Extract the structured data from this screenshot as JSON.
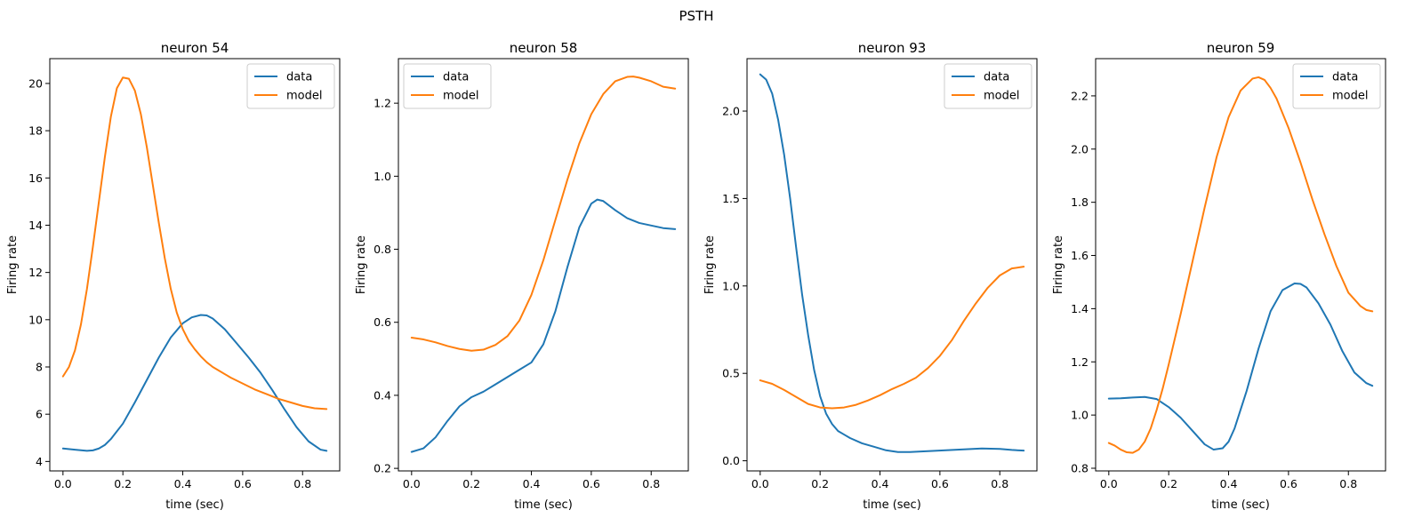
{
  "figure": {
    "suptitle": "PSTH"
  },
  "colors": {
    "data": "#1f77b4",
    "model": "#ff7f0e"
  },
  "chart_data": [
    {
      "type": "line",
      "title": "neuron 54",
      "xlabel": "time (sec)",
      "ylabel": "Firing rate",
      "xlim": [
        -0.044,
        0.924
      ],
      "ylim": [
        3.6,
        21.05
      ],
      "xticks": [
        0.0,
        0.2,
        0.4,
        0.6,
        0.8
      ],
      "xtick_labels": [
        "0.0",
        "0.2",
        "0.4",
        "0.6",
        "0.8"
      ],
      "yticks": [
        4,
        6,
        8,
        10,
        12,
        14,
        16,
        18,
        20
      ],
      "ytick_labels": [
        "4",
        "6",
        "8",
        "10",
        "12",
        "14",
        "16",
        "18",
        "20"
      ],
      "legend": {
        "position": "upper right",
        "entries": [
          "data",
          "model"
        ]
      },
      "series": [
        {
          "name": "data",
          "x": [
            0.0,
            0.04,
            0.08,
            0.1,
            0.12,
            0.14,
            0.16,
            0.2,
            0.24,
            0.28,
            0.32,
            0.36,
            0.4,
            0.43,
            0.46,
            0.48,
            0.5,
            0.54,
            0.58,
            0.62,
            0.66,
            0.7,
            0.74,
            0.78,
            0.82,
            0.86,
            0.88
          ],
          "y": [
            4.55,
            4.5,
            4.45,
            4.47,
            4.55,
            4.7,
            4.95,
            5.6,
            6.5,
            7.45,
            8.4,
            9.25,
            9.85,
            10.1,
            10.2,
            10.18,
            10.05,
            9.6,
            9.0,
            8.4,
            7.75,
            7.0,
            6.2,
            5.45,
            4.85,
            4.5,
            4.45
          ]
        },
        {
          "name": "model",
          "x": [
            0.0,
            0.02,
            0.04,
            0.06,
            0.08,
            0.1,
            0.12,
            0.14,
            0.16,
            0.18,
            0.2,
            0.22,
            0.24,
            0.26,
            0.28,
            0.3,
            0.32,
            0.34,
            0.36,
            0.38,
            0.4,
            0.42,
            0.44,
            0.46,
            0.48,
            0.5,
            0.52,
            0.56,
            0.6,
            0.64,
            0.68,
            0.72,
            0.76,
            0.8,
            0.84,
            0.88
          ],
          "y": [
            7.6,
            8.0,
            8.7,
            9.8,
            11.3,
            13.1,
            15.0,
            16.9,
            18.6,
            19.8,
            20.25,
            20.2,
            19.7,
            18.7,
            17.3,
            15.7,
            14.1,
            12.6,
            11.3,
            10.3,
            9.6,
            9.1,
            8.75,
            8.45,
            8.2,
            8.0,
            7.85,
            7.55,
            7.3,
            7.05,
            6.85,
            6.65,
            6.5,
            6.35,
            6.25,
            6.22
          ]
        }
      ]
    },
    {
      "type": "line",
      "title": "neuron 58",
      "xlabel": "time (sec)",
      "ylabel": "Firing rate",
      "xlim": [
        -0.044,
        0.924
      ],
      "ylim": [
        0.193,
        1.322
      ],
      "xticks": [
        0.0,
        0.2,
        0.4,
        0.6,
        0.8
      ],
      "xtick_labels": [
        "0.0",
        "0.2",
        "0.4",
        "0.6",
        "0.8"
      ],
      "yticks": [
        0.2,
        0.4,
        0.6,
        0.8,
        1.0,
        1.2
      ],
      "ytick_labels": [
        "0.2",
        "0.4",
        "0.6",
        "0.8",
        "1.0",
        "1.2"
      ],
      "legend": {
        "position": "upper left",
        "entries": [
          "data",
          "model"
        ]
      },
      "series": [
        {
          "name": "data",
          "x": [
            0.0,
            0.04,
            0.08,
            0.12,
            0.16,
            0.2,
            0.24,
            0.28,
            0.32,
            0.36,
            0.4,
            0.44,
            0.48,
            0.52,
            0.56,
            0.6,
            0.62,
            0.64,
            0.68,
            0.72,
            0.76,
            0.8,
            0.84,
            0.88
          ],
          "y": [
            0.245,
            0.255,
            0.285,
            0.33,
            0.37,
            0.395,
            0.41,
            0.43,
            0.45,
            0.47,
            0.49,
            0.54,
            0.63,
            0.75,
            0.86,
            0.925,
            0.936,
            0.932,
            0.907,
            0.885,
            0.872,
            0.865,
            0.858,
            0.855
          ]
        },
        {
          "name": "model",
          "x": [
            0.0,
            0.04,
            0.08,
            0.12,
            0.16,
            0.2,
            0.24,
            0.28,
            0.32,
            0.36,
            0.4,
            0.44,
            0.48,
            0.52,
            0.56,
            0.6,
            0.64,
            0.68,
            0.72,
            0.74,
            0.76,
            0.8,
            0.84,
            0.88
          ],
          "y": [
            0.558,
            0.553,
            0.545,
            0.535,
            0.527,
            0.522,
            0.525,
            0.538,
            0.562,
            0.605,
            0.675,
            0.77,
            0.88,
            0.99,
            1.09,
            1.17,
            1.225,
            1.26,
            1.272,
            1.273,
            1.27,
            1.26,
            1.245,
            1.24
          ]
        }
      ]
    },
    {
      "type": "line",
      "title": "neuron 93",
      "xlabel": "time (sec)",
      "ylabel": "Firing rate",
      "xlim": [
        -0.044,
        0.924
      ],
      "ylim": [
        -0.058,
        2.3
      ],
      "xticks": [
        0.0,
        0.2,
        0.4,
        0.6,
        0.8
      ],
      "xtick_labels": [
        "0.0",
        "0.2",
        "0.4",
        "0.6",
        "0.8"
      ],
      "yticks": [
        0.0,
        0.5,
        1.0,
        1.5,
        2.0
      ],
      "ytick_labels": [
        "0.0",
        "0.5",
        "1.0",
        "1.5",
        "2.0"
      ],
      "legend": {
        "position": "upper right",
        "entries": [
          "data",
          "model"
        ]
      },
      "series": [
        {
          "name": "data",
          "x": [
            0.0,
            0.02,
            0.04,
            0.06,
            0.08,
            0.1,
            0.12,
            0.14,
            0.16,
            0.18,
            0.2,
            0.22,
            0.24,
            0.26,
            0.28,
            0.3,
            0.34,
            0.38,
            0.42,
            0.46,
            0.5,
            0.56,
            0.62,
            0.68,
            0.74,
            0.8,
            0.84,
            0.88
          ],
          "y": [
            2.21,
            2.18,
            2.1,
            1.95,
            1.75,
            1.5,
            1.22,
            0.95,
            0.72,
            0.52,
            0.37,
            0.27,
            0.21,
            0.17,
            0.15,
            0.13,
            0.1,
            0.08,
            0.06,
            0.05,
            0.05,
            0.055,
            0.06,
            0.065,
            0.07,
            0.068,
            0.062,
            0.058
          ]
        },
        {
          "name": "model",
          "x": [
            0.0,
            0.04,
            0.08,
            0.12,
            0.16,
            0.2,
            0.24,
            0.28,
            0.32,
            0.36,
            0.4,
            0.44,
            0.48,
            0.52,
            0.56,
            0.6,
            0.64,
            0.68,
            0.72,
            0.76,
            0.8,
            0.84,
            0.88
          ],
          "y": [
            0.46,
            0.44,
            0.405,
            0.365,
            0.325,
            0.305,
            0.3,
            0.305,
            0.32,
            0.345,
            0.375,
            0.41,
            0.44,
            0.475,
            0.53,
            0.6,
            0.69,
            0.8,
            0.9,
            0.99,
            1.06,
            1.1,
            1.11
          ]
        }
      ]
    },
    {
      "type": "line",
      "title": "neuron 59",
      "xlabel": "time (sec)",
      "ylabel": "Firing rate",
      "xlim": [
        -0.044,
        0.924
      ],
      "ylim": [
        0.79,
        2.34
      ],
      "xticks": [
        0.0,
        0.2,
        0.4,
        0.6,
        0.8
      ],
      "xtick_labels": [
        "0.0",
        "0.2",
        "0.4",
        "0.6",
        "0.8"
      ],
      "yticks": [
        0.8,
        1.0,
        1.2,
        1.4,
        1.6,
        1.8,
        2.0,
        2.2
      ],
      "ytick_labels": [
        "0.8",
        "1.0",
        "1.2",
        "1.4",
        "1.6",
        "1.8",
        "2.0",
        "2.2"
      ],
      "legend": {
        "position": "upper right",
        "entries": [
          "data",
          "model"
        ]
      },
      "series": [
        {
          "name": "data",
          "x": [
            0.0,
            0.04,
            0.08,
            0.12,
            0.16,
            0.2,
            0.24,
            0.28,
            0.32,
            0.35,
            0.38,
            0.4,
            0.42,
            0.46,
            0.5,
            0.54,
            0.58,
            0.62,
            0.64,
            0.66,
            0.7,
            0.74,
            0.78,
            0.82,
            0.86,
            0.88
          ],
          "y": [
            1.062,
            1.063,
            1.066,
            1.068,
            1.06,
            1.03,
            0.99,
            0.94,
            0.89,
            0.87,
            0.875,
            0.9,
            0.95,
            1.09,
            1.25,
            1.39,
            1.47,
            1.495,
            1.493,
            1.48,
            1.42,
            1.34,
            1.24,
            1.16,
            1.12,
            1.11
          ]
        },
        {
          "name": "model",
          "x": [
            0.0,
            0.02,
            0.04,
            0.06,
            0.08,
            0.1,
            0.12,
            0.14,
            0.16,
            0.18,
            0.2,
            0.24,
            0.28,
            0.32,
            0.36,
            0.4,
            0.44,
            0.48,
            0.5,
            0.52,
            0.54,
            0.56,
            0.6,
            0.64,
            0.68,
            0.72,
            0.76,
            0.8,
            0.84,
            0.86,
            0.88
          ],
          "y": [
            0.895,
            0.885,
            0.87,
            0.86,
            0.858,
            0.87,
            0.9,
            0.95,
            1.02,
            1.1,
            1.19,
            1.38,
            1.58,
            1.78,
            1.97,
            2.12,
            2.22,
            2.265,
            2.27,
            2.26,
            2.23,
            2.19,
            2.08,
            1.95,
            1.81,
            1.68,
            1.56,
            1.46,
            1.41,
            1.395,
            1.39
          ]
        }
      ]
    }
  ]
}
